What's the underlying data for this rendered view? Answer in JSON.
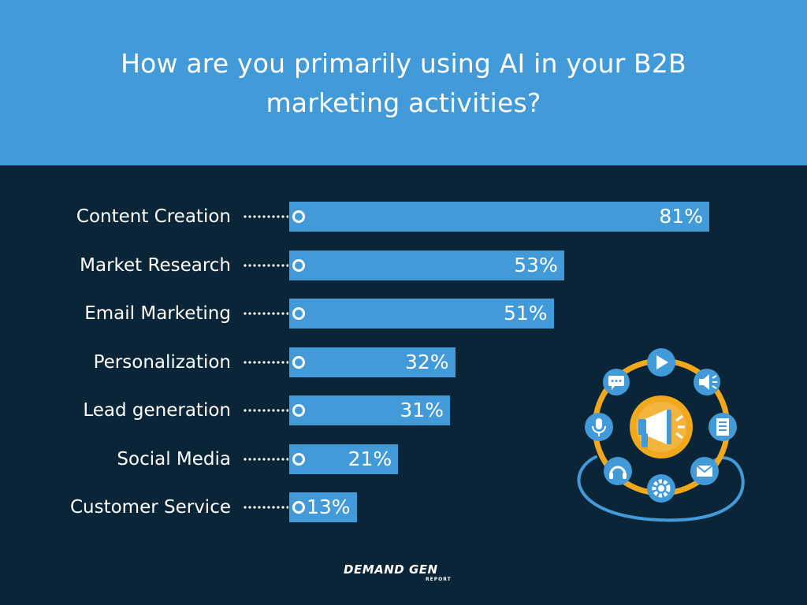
{
  "header": {
    "title": "How are you primarily using AI in your B2B marketing activities?"
  },
  "chart_data": {
    "type": "bar",
    "orientation": "horizontal",
    "title": "How are you primarily using AI in your B2B marketing activities?",
    "categories": [
      "Content Creation",
      "Market Research",
      "Email Marketing",
      "Personalization",
      "Lead generation",
      "Social Media",
      "Customer Service"
    ],
    "values": [
      81,
      53,
      51,
      32,
      31,
      21,
      13
    ],
    "value_labels": [
      "81%",
      "53%",
      "51%",
      "32%",
      "31%",
      "21%",
      "13%"
    ],
    "value_unit": "%",
    "xlim": [
      0,
      100
    ],
    "grid": false,
    "legend": "none",
    "colors": {
      "bar": "#429bd8",
      "background": "#0b2538",
      "header": "#429bd8",
      "text": "#ffffff",
      "accent": "#f2a81d"
    }
  },
  "illustration": {
    "icons": [
      "megaphone-icon",
      "play-icon",
      "speaker-icon",
      "document-icon",
      "mail-icon",
      "gear-icon",
      "headphones-icon",
      "microphone-icon",
      "chat-icon"
    ]
  },
  "footer": {
    "logo_main": "DEMAND GEN",
    "logo_sub": "REPORT"
  }
}
